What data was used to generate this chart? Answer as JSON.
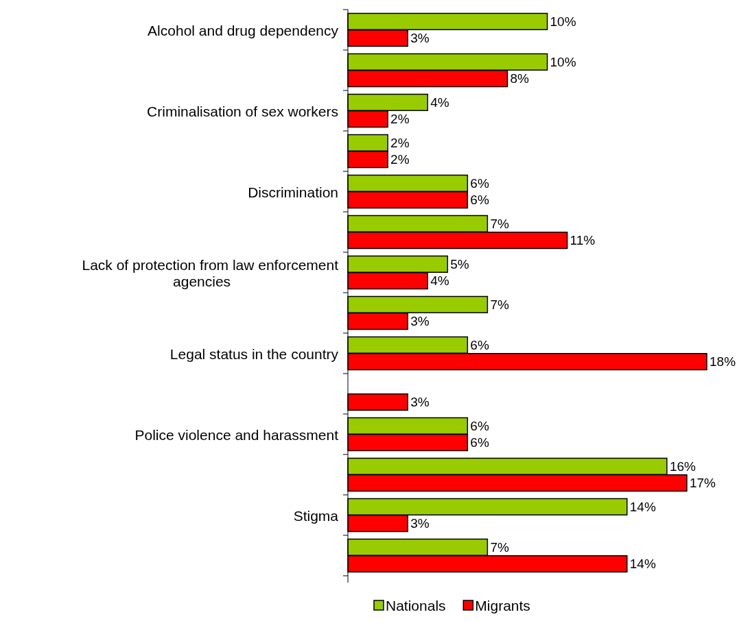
{
  "chart_data": {
    "type": "bar",
    "orientation": "horizontal",
    "categories": [
      "Alcohol and drug dependency",
      null,
      "Criminalisation of sex workers",
      null,
      "Discrimination",
      null,
      "Lack of protection from law enforcement agencies",
      null,
      "Legal status in the country",
      null,
      "Police violence and harassment",
      null,
      "Stigma",
      null
    ],
    "series": [
      {
        "name": "Nationals",
        "color": "#99cc00",
        "values": [
          10,
          10,
          4,
          2,
          6,
          7,
          5,
          7,
          6,
          null,
          6,
          16,
          14,
          7
        ],
        "value_labels": [
          "10%",
          "10%",
          "4%",
          "2%",
          "6%",
          "7%",
          "5%",
          "7%",
          "6%",
          null,
          "6%",
          "16%",
          "14%",
          "7%"
        ]
      },
      {
        "name": "Migrants",
        "color": "#ff0000",
        "values": [
          3,
          8,
          2,
          2,
          6,
          11,
          4,
          3,
          18,
          3,
          6,
          17,
          3,
          14
        ],
        "value_labels": [
          "3%",
          "8%",
          "2%",
          "2%",
          "6%",
          "11%",
          "4%",
          "3%",
          "18%",
          "3%",
          "6%",
          "17%",
          "3%",
          "14%"
        ]
      }
    ],
    "xlim": [
      0,
      18
    ],
    "tick_labels": "y",
    "legend": "bottom"
  }
}
